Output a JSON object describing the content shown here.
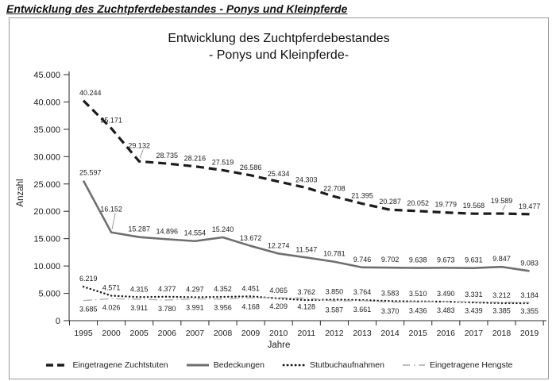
{
  "page": {
    "heading": "Entwicklung des Zuchtpferdebestandes - Ponys und Kleinpferde"
  },
  "chart_data": {
    "type": "line",
    "title_line1": "Entwicklung des Zuchtpferdebestandes",
    "title_line2": "- Ponys und Kleinpferde-",
    "xlabel": "Jahre",
    "ylabel": "Anzahl",
    "ylim": [
      0,
      45000
    ],
    "ytick_step": 5000,
    "grid": false,
    "legend_position": "bottom",
    "number_format": "german-thousands-dot",
    "categories": [
      "1995",
      "2000",
      "2005",
      "2006",
      "2007",
      "2008",
      "2009",
      "2010",
      "2011",
      "2012",
      "2013",
      "2014",
      "2015",
      "2016",
      "2017",
      "2018",
      "2019"
    ],
    "series": [
      {
        "name": "Eingetragene Zuchtstuten",
        "style": "dashed",
        "color": "#1c1c1c",
        "width": 3.2,
        "values": [
          40244,
          35171,
          29132,
          28735,
          28216,
          27519,
          26586,
          25434,
          24303,
          22708,
          21395,
          20287,
          20052,
          19779,
          19568,
          19589,
          19477
        ],
        "label_pos": "above"
      },
      {
        "name": "Bedeckungen",
        "style": "solid",
        "color": "#6f6f6f",
        "width": 2.6,
        "values": [
          25597,
          16152,
          15287,
          14896,
          14554,
          15240,
          13672,
          12274,
          11547,
          10781,
          9746,
          9702,
          9638,
          9673,
          9631,
          9847,
          9083
        ],
        "label_pos": "above"
      },
      {
        "name": "Stutbuchaufnahmen",
        "style": "dotted",
        "color": "#1c1c1c",
        "width": 2.4,
        "values": [
          6219,
          4571,
          4315,
          4377,
          4297,
          4352,
          4451,
          4065,
          3762,
          3850,
          3764,
          3583,
          3510,
          3490,
          3331,
          3212,
          3184
        ],
        "label_pos": "above"
      },
      {
        "name": "Eingetragene Hengste",
        "style": "dashdot",
        "color": "#b2b2b2",
        "width": 1.4,
        "values": [
          3685,
          4026,
          3911,
          3780,
          3991,
          3956,
          4168,
          4209,
          4128,
          3587,
          3661,
          3370,
          3436,
          3483,
          3439,
          3385,
          3355
        ],
        "label_pos": "below"
      }
    ],
    "label_overrides": [
      {
        "series": 0,
        "index": 2,
        "dy": -17,
        "leader": true
      },
      {
        "series": 0,
        "index": 15,
        "dy": -13,
        "leader": true
      },
      {
        "series": 1,
        "index": 1,
        "dy": -26,
        "leader": true
      }
    ]
  }
}
